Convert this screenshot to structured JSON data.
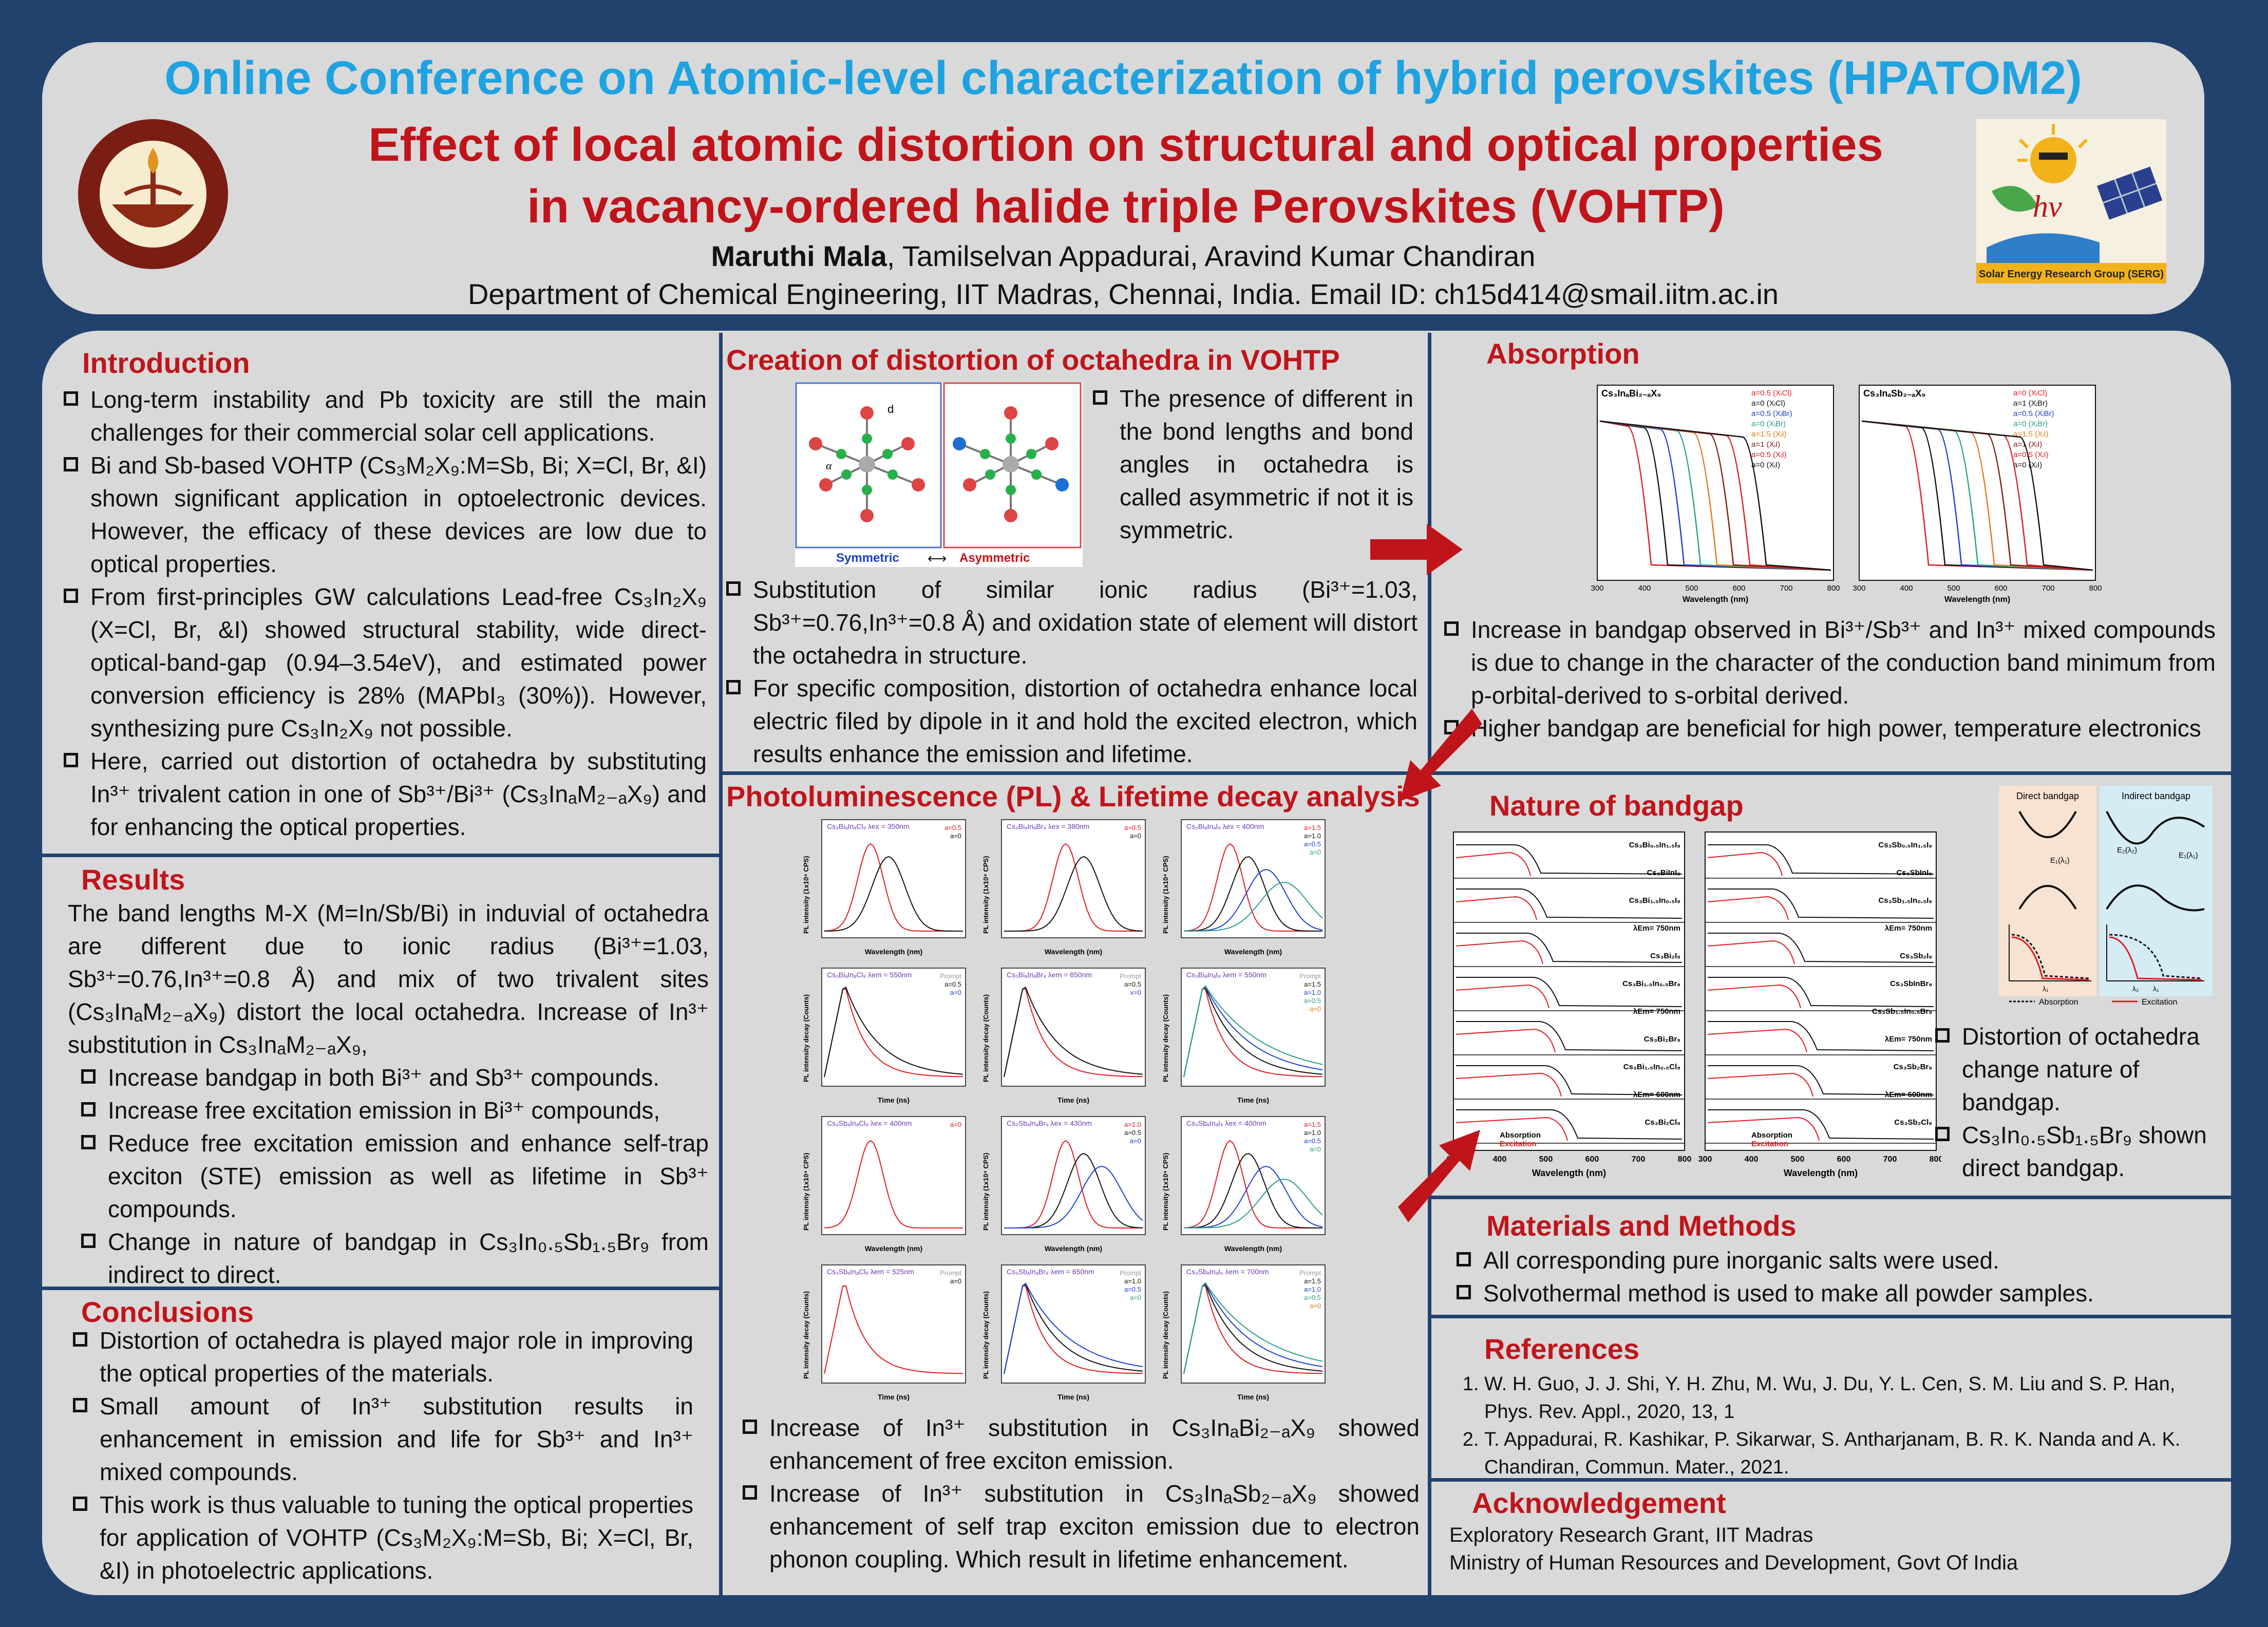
{
  "header": {
    "conference": "Online Conference on Atomic-level characterization of hybrid perovskites  (HPATOM2)",
    "title_line1": "Effect of local atomic distortion on structural and optical properties",
    "title_line2": "in vacancy-ordered halide triple Perovskites (VOHTP)",
    "author_main": "Maruthi Mala",
    "author_rest": ", Tamilselvan Appadurai, Aravind Kumar Chandiran",
    "affiliation": "Department of Chemical Engineering, IIT Madras, Chennai, India. Email ID: ch15d414@smail.iitm.ac.in",
    "logo_left_text": "INDIAN INSTITUTE OF TECHNOLOGY MADRAS",
    "logo_right_text": "Solar Energy Research Group (SERG)"
  },
  "introduction": {
    "title": "Introduction",
    "bullets": [
      "Long-term instability and Pb toxicity are still the main challenges for their commercial solar cell applications.",
      "Bi and Sb-based VOHTP (Cs₃M₂X₉:M=Sb, Bi; X=Cl, Br, &I) shown significant application in optoelectronic devices. However, the efficacy of these devices are low due to optical properties.",
      "From first-principles GW calculations Lead-free Cs₃In₂X₉ (X=Cl, Br, &I) showed structural stability, wide direct-optical-band-gap (0.94–3.54eV), and estimated power conversion efficiency is 28% (MAPbI₃ (30%)). However, synthesizing pure Cs₃In₂X₉ not possible.",
      "Here, carried out distortion of octahedra by substituting In³⁺ trivalent cation in one of Sb³⁺/Bi³⁺ (Cs₃InₐM₂₋ₐX₉) and for enhancing the optical properties."
    ]
  },
  "results": {
    "title": "Results",
    "paragraph": "The band lengths M-X (M=In/Sb/Bi) in induvial of octahedra are different due to ionic radius (Bi³⁺=1.03, Sb³⁺=0.76,In³⁺=0.8 Å) and mix of two trivalent sites (Cs₃InₐM₂₋ₐX₉) distort the local octahedra. Increase of In³⁺ substitution in Cs₃InₐM₂₋ₐX₉,",
    "bullets": [
      "Increase bandgap in both Bi³⁺ and Sb³⁺ compounds.",
      "Increase  free excitation emission in Bi³⁺ compounds,",
      "Reduce free excitation emission and enhance self-trap exciton (STE) emission as well as lifetime in Sb³⁺ compounds.",
      "Change in nature of bandgap in Cs₃In₀.₅Sb₁.₅Br₉ from indirect to direct."
    ]
  },
  "conclusions": {
    "title": "Conclusions",
    "bullets": [
      "Distortion of octahedra is played major role  in improving  the optical properties of the materials.",
      "Small amount of In³⁺ substitution results in enhancement in emission and life for Sb³⁺ and In³⁺ mixed compounds.",
      "This work is thus valuable to tuning the optical properties for application of VOHTP (Cs₃M₂X₉:M=Sb, Bi; X=Cl, Br, &I) in photoelectric applications."
    ]
  },
  "distortion": {
    "title": "Creation of distortion of octahedra in VOHTP",
    "fig_label_sym": "Symmetric",
    "fig_label_arrow": "⟷",
    "fig_label_asym": "Asymmetric",
    "fig_d": "d",
    "fig_alpha": "α",
    "side_bullet": "The presence of different in the bond lengths  and bond angles in octahedra is called asymmetric if not it is symmetric.",
    "bullets": [
      "Substitution of similar ionic radius (Bi³⁺=1.03, Sb³⁺=0.76,In³⁺=0.8 Å) and oxidation state of element will distort the octahedra in structure.",
      "For specific composition, distortion  of octahedra enhance local electric filed by dipole in it and hold the excited electron, which results enhance the emission and lifetime."
    ]
  },
  "pl": {
    "title": "Photoluminescence (PL) & Lifetime decay analysis",
    "bullets": [
      "Increase of In³⁺ substitution in Cs₃InₐBi₂₋ₐX₉ showed enhancement of free exciton emission.",
      "Increase of In³⁺ substitution in Cs₃InₐSb₂₋ₐX₉ showed enhancement of self trap exciton emission due to electron phonon coupling. Which result in lifetime enhancement."
    ],
    "panels": [
      {
        "title": "Cs₃BiₐInₐCl₉ λex = 350nm",
        "xlabel": "Wavelength (nm)",
        "ylabel": "PL intensity (1x10⁴ CPS)",
        "legend": [
          "a=0.5",
          "a=0"
        ]
      },
      {
        "title": "Cs₃BiₐInₐBr₉ λex = 380nm",
        "xlabel": "Wavelength (nm)",
        "ylabel": "PL intensity (1x10⁴ CPS)",
        "legend": [
          "a=0.5",
          "a=0"
        ]
      },
      {
        "title": "Cs₃BiₐInₐI₉ λex = 400nm",
        "xlabel": "Wavelength (nm)",
        "ylabel": "PL intensity (1x10⁴ CPS)",
        "legend": [
          "a=1.5",
          "a=1.0",
          "a=0.5",
          "a=0"
        ]
      },
      {
        "title": "Cs₃BiₐInₐCl₉ λem = 550nm",
        "xlabel": "Time (ns)",
        "ylabel": "PL intensity decay (Counts)",
        "legend": [
          "Prompt",
          "a=0.5",
          "a=0"
        ]
      },
      {
        "title": "Cs₃BiₐInₐBr₉ λem = 650nm",
        "xlabel": "Time (ns)",
        "ylabel": "PL intensity decay (Counts)",
        "legend": [
          "Prompt",
          "a=0.5",
          "x=0"
        ]
      },
      {
        "title": "Cs₃BiₐInₐI₉ λem = 550nm",
        "xlabel": "Time (ns)",
        "ylabel": "PL intensity decay (Counts)",
        "legend": [
          "Prompt",
          "a=1.5",
          "a=1.0",
          "a=0.5",
          "a=0"
        ]
      },
      {
        "title": "Cs₃SbₐInₐCl₉ λex = 400nm",
        "xlabel": "Wavelength (nm)",
        "ylabel": "PL intensity (1x10⁴ CPS)",
        "legend": [
          "a=0"
        ]
      },
      {
        "title": "Cs₃SbₐInₐBr₉ λex = 430nm",
        "xlabel": "Wavelength (nm)",
        "ylabel": "PL intensity (1x10⁴ CPS)",
        "legend": [
          "a=1.0",
          "a=0.5",
          "a=0"
        ]
      },
      {
        "title": "Cs₃SbₐInₐI₉ λex = 400nm",
        "xlabel": "Wavelength (nm)",
        "ylabel": "PL intensity (1x10⁴ CPS)",
        "legend": [
          "a=1.5",
          "a=1.0",
          "a=0.5",
          "a=0"
        ]
      },
      {
        "title": "Cs₃SbₐInₐCl₉ λem = 525nm",
        "xlabel": "Time (ns)",
        "ylabel": "PL intensity decay (Counts)",
        "legend": [
          "Prompt",
          "a=0"
        ]
      },
      {
        "title": "Cs₃SbₐInₐBr₉ λem = 650nm",
        "xlabel": "Time (ns)",
        "ylabel": "PL intensity decay (Counts)",
        "legend": [
          "Prompt",
          "a=1.0",
          "a=0.5",
          "a=0"
        ]
      },
      {
        "title": "Cs₃SbₐInₐI₉ λem = 700nm",
        "xlabel": "Time (ns)",
        "ylabel": "PL intensity decay (Counts)",
        "legend": [
          "Prompt",
          "a=1.5",
          "a=1.0",
          "a=0.5",
          "a=0"
        ]
      }
    ]
  },
  "absorption": {
    "title": "Absorption",
    "chart_left": {
      "label": "Cs₃InₐBi₂₋ₐX₉",
      "xlabel": "Wavelength (nm)",
      "xticks": [
        "300",
        "400",
        "500",
        "600",
        "700",
        "800"
      ],
      "legend": [
        "a=0.5 (XᵢCl)",
        "a=0 (XᵢCl)",
        "a=0.5 (XᵢBr)",
        "a=0 (XᵢBr)",
        "a=1.5 (XᵢI)",
        "a=1 (XᵢI)",
        "a=0.5 (XᵢI)",
        "a=0 (XᵢI)"
      ]
    },
    "chart_right": {
      "label": "Cs₃InₐSb₂₋ₐX₉",
      "xlabel": "Wavelength (nm)",
      "xticks": [
        "300",
        "400",
        "500",
        "600",
        "700",
        "800"
      ],
      "legend": [
        "a=0 (XᵢCl)",
        "a=1 (XᵢBr)",
        "a=0.5 (XᵢBr)",
        "a=0 (XᵢBr)",
        "a=1.5 (XᵢI)",
        "a=1 (XᵢI)",
        "a=0.5 (XᵢI)",
        "a=0 (XᵢI)"
      ]
    },
    "bullets": [
      "Increase in bandgap observed in Bi³⁺/Sb³⁺ and In³⁺ mixed compounds  is due to change in the character of the conduction band minimum from p-orbital-derived  to s-orbital derived.",
      "Higher bandgap are beneficial for high power, temperature electronics"
    ]
  },
  "bandgap": {
    "title": "Nature of bandgap",
    "left_labels": [
      "Cs₃Bi₀.₅In₁.₅I₉",
      "Cs₃BiInI₉",
      "Cs₃Bi₁.₅In₀.₅I₉",
      "λEm= 750nm",
      "Cs₃Bi₂I₉",
      "Cs₃Bi₁.₅In₀.₅Br₉",
      "λEm= 750nm",
      "Cs₃Bi₂Br₉",
      "Cs₃Bi₁.₅In₀.₅Cl₉",
      "λEm= 600nm",
      "Cs₃Bi₂Cl₉"
    ],
    "right_labels": [
      "Cs₃Sb₀.₅In₁.₅I₉",
      "Cs₃SbInI₉",
      "Cs₃Sb₁.₅In₀.₅I₉",
      "λEm= 750nm",
      "Cs₃Sb₂I₉",
      "Cs₃SbInBr₉",
      "Cs₃Sb₁.₅In₀.₅Br₉",
      "λEm= 750nm",
      "Cs₃Sb₂Br₉",
      "λEm= 600nm",
      "Cs₃Sb₂Cl₉"
    ],
    "legend_abs": "Absorption",
    "legend_exc": "Excitation",
    "xlabel": "Wavelength (nm)",
    "xticks": [
      "300",
      "400",
      "500",
      "600",
      "700",
      "800"
    ],
    "diagram": {
      "direct": "Direct bandgap",
      "indirect": "Indirect bandgap",
      "e1": "E₁(λ₁)",
      "e2": "E₂(λ₂)",
      "l1": "λ₁",
      "l2": "λ₂",
      "abs": "Absorption",
      "exc": "Excitation"
    },
    "bullets": [
      "Distortion of octahedra change nature of bandgap.",
      "Cs₃In₀.₅Sb₁.₅Br₉ shown direct bandgap."
    ]
  },
  "materials": {
    "title": "Materials and Methods",
    "bullets": [
      "All corresponding pure inorganic salts were used.",
      "Solvothermal method is used to make all powder samples."
    ]
  },
  "references": {
    "title": "References",
    "items": [
      "W. H. Guo, J. J. Shi, Y. H. Zhu, M. Wu, J. Du, Y. L. Cen, S. M. Liu and S. P. Han, Phys. Rev. Appl., 2020, 13, 1",
      "T. Appadurai, R. Kashikar, P. Sikarwar, S. Antharjanam, B. R. K. Nanda and A. K. Chandiran, Commun. Mater., 2021."
    ]
  },
  "acknowledgement": {
    "title": "Acknowledgement",
    "lines": [
      "Exploratory Research Grant, IIT Madras",
      "Ministry of Human Resources and Development, Govt Of India"
    ]
  },
  "colors": {
    "background": "#22426e",
    "panel": "#d9d9d9",
    "heading_red": "#c0141b",
    "conference_blue": "#1fa3e0"
  }
}
